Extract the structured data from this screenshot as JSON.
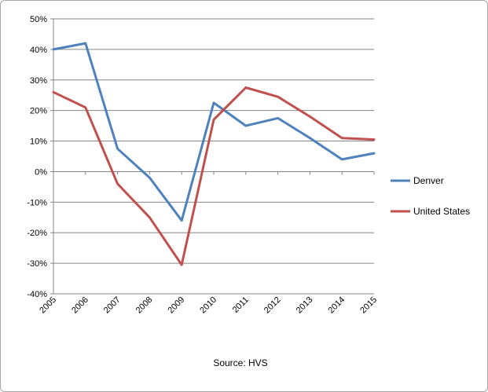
{
  "chart_data": {
    "type": "line",
    "categories": [
      "2005",
      "2006",
      "2007",
      "2008",
      "2009",
      "2010",
      "2011",
      "2012",
      "2013",
      "2014",
      "2015"
    ],
    "series": [
      {
        "name": "Denver",
        "color": "#4f81bd",
        "values": [
          40,
          42,
          7.5,
          -2,
          -16,
          22.5,
          15,
          17.5,
          11,
          4,
          6
        ]
      },
      {
        "name": "United States",
        "color": "#c0504d",
        "values": [
          26,
          21,
          -4,
          -15,
          -30.5,
          17,
          27.5,
          24.5,
          18,
          11,
          10.5
        ]
      }
    ],
    "ylim": [
      -40,
      50
    ],
    "yticks": [
      50,
      40,
      30,
      20,
      10,
      0,
      -10,
      -20,
      -30,
      -40
    ],
    "ytick_labels": [
      "50%",
      "40%",
      "30%",
      "20%",
      "10%",
      "0%",
      "-10%",
      "-20%",
      "-30%",
      "-40%"
    ],
    "grid": true,
    "legend_position": "right",
    "xlabel": "Source: HVS",
    "title": "",
    "ylabel": ""
  }
}
